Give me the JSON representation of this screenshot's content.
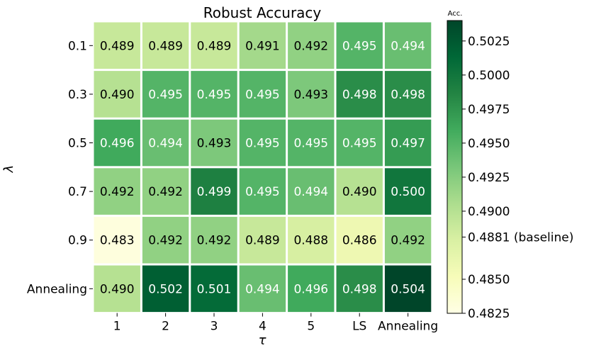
{
  "chart_data": {
    "type": "heatmap",
    "title": "Robust Accuracy",
    "xlabel": "τ",
    "ylabel": "λ",
    "x_categories": [
      "1",
      "2",
      "3",
      "4",
      "5",
      "LS",
      "Annealing"
    ],
    "y_categories": [
      "0.1",
      "0.3",
      "0.5",
      "0.7",
      "0.9",
      "Annealing"
    ],
    "values": [
      [
        "0.489",
        "0.489",
        "0.489",
        "0.491",
        "0.492",
        "0.495",
        "0.494"
      ],
      [
        "0.490",
        "0.495",
        "0.495",
        "0.495",
        "0.493",
        "0.498",
        "0.498"
      ],
      [
        "0.496",
        "0.494",
        "0.493",
        "0.495",
        "0.495",
        "0.495",
        "0.497"
      ],
      [
        "0.492",
        "0.492",
        "0.499",
        "0.495",
        "0.494",
        "0.490",
        "0.500"
      ],
      [
        "0.483",
        "0.492",
        "0.492",
        "0.489",
        "0.488",
        "0.486",
        "0.492"
      ],
      [
        "0.490",
        "0.502",
        "0.501",
        "0.494",
        "0.496",
        "0.498",
        "0.504"
      ]
    ],
    "colorbar": {
      "title": "Acc.",
      "vmin": 0.4825,
      "vmax": 0.504,
      "colormap": "YlGn",
      "ticks": [
        {
          "value": 0.4825,
          "label": "0.4825"
        },
        {
          "value": 0.485,
          "label": "0.4850"
        },
        {
          "value": 0.4881,
          "label": "0.4881 (baseline)"
        },
        {
          "value": 0.49,
          "label": "0.4900"
        },
        {
          "value": 0.4925,
          "label": "0.4925"
        },
        {
          "value": 0.495,
          "label": "0.4950"
        },
        {
          "value": 0.4975,
          "label": "0.4975"
        },
        {
          "value": 0.5,
          "label": "0.5000"
        },
        {
          "value": 0.5025,
          "label": "0.5025"
        }
      ]
    },
    "cell_border_color": "#ffffff"
  }
}
